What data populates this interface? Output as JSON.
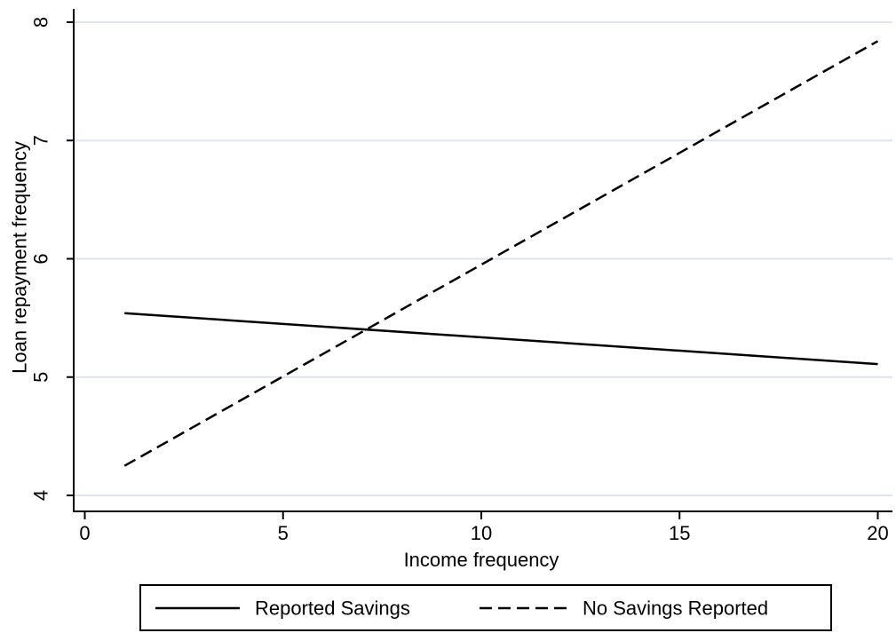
{
  "chart_data": {
    "type": "line",
    "xlabel": "Income frequency",
    "ylabel": "Loan repayment frequency",
    "xlim": [
      0,
      20
    ],
    "ylim": [
      4,
      8
    ],
    "xticks": [
      0,
      5,
      10,
      15,
      20
    ],
    "yticks": [
      4,
      5,
      6,
      7,
      8
    ],
    "grid": "horizontal",
    "legend_position": "bottom",
    "series": [
      {
        "name": "Reported Savings",
        "style": "solid",
        "color": "#000000",
        "x": [
          1,
          20
        ],
        "y": [
          5.54,
          5.11
        ]
      },
      {
        "name": "No Savings Reported",
        "style": "dashed",
        "color": "#000000",
        "x": [
          1,
          20
        ],
        "y": [
          4.25,
          7.84
        ]
      }
    ]
  }
}
